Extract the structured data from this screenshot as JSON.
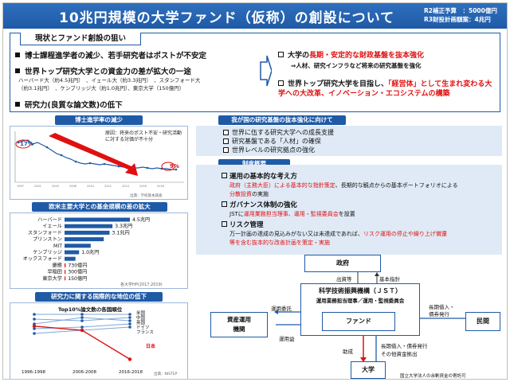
{
  "header": {
    "title": "10兆円規模の大学ファンド（仮称）の創設について",
    "budget_line1": "R2補正予算　：5000億円",
    "budget_line2": "R3財投計画額案：4兆円"
  },
  "status": {
    "label": "現状とファンド創設の狙い",
    "bullets": [
      "博士課程進学者の減少、若手研究者はポストが不安定",
      "世界トップ研究大学との資金力の差が拡大の一途",
      "研究力(良質な論文数)の低下"
    ],
    "sub_line1": "ハーバード大（約4.5兆円）　、イェール大（約3.3兆円）　、スタンフォード大",
    "sub_line2": "（約3.1兆円）　、ケンブリッジ大（約1.0兆円）、東京大学（150億円）",
    "aims": [
      {
        "pre": "大学の",
        "red": "長期・安定的な財政基盤を抜本強化",
        "post": ""
      },
      {
        "pre": "世界トップ研究大学を目指し、",
        "red": "「経営体」として生まれ変わる大学への大改革、イノベーション・エコシステムの構築",
        "post": ""
      }
    ],
    "aim1_sub": "⇒人材、研究インフラなど将来の研究基盤を強化"
  },
  "chart1": {
    "header": "博士進学率の減少",
    "note": "原因：将来のポスト不安・研究活動に対する対価が不十分",
    "start_label": "17%",
    "end_label": "9%",
    "source": "出典：学校基本調査"
  },
  "chart2": {
    "header": "欧米主要大学との基金規模の差の拡大",
    "source": "各大学HP(2017,2019)",
    "chart_data": {
      "type": "bar",
      "categories": [
        "ハーバード",
        "イェール",
        "スタンフォード",
        "プリンストン",
        "MIT",
        "ケンブリッジ",
        "オックスフォード",
        "慶應",
        "早稲田",
        "東京大学"
      ],
      "values": [
        4.5,
        3.3,
        3.1,
        2.7,
        1.8,
        1.0,
        0.75,
        0.073,
        0.03,
        0.015
      ],
      "value_labels": [
        "4.5兆円",
        "3.3兆円",
        "3.1兆円",
        "",
        "",
        "1.0兆円",
        "",
        "730億円",
        "300億円",
        "150億円"
      ]
    }
  },
  "chart3": {
    "header": "研究力に関する国際的な地位の低下",
    "subtitle": "Top10%論文数の各国順位",
    "countries": [
      "米国",
      "中国",
      "英国",
      "ドイツ",
      "フランス"
    ],
    "japan_label": "日本",
    "x_labels": [
      "1996-1998",
      "2006-2008",
      "2016-2018"
    ],
    "source": "出典：NISTEP",
    "chart_data": {
      "type": "line",
      "x": [
        "1996-1998",
        "2006-2008",
        "2016-2018"
      ],
      "series": [
        {
          "name": "日本",
          "values": [
            4,
            5,
            12
          ]
        }
      ]
    }
  },
  "right1": {
    "header": "我が国の研究基盤の抜本強化に向けて",
    "items": [
      "世界に伍する研究大学への成長支援",
      "研究基盤である「人材」の確保",
      "世界レベルの研究拠点の強化"
    ]
  },
  "right2": {
    "header": "制度概要",
    "h1": "運用の基本的な考え方",
    "h1_l1_red": "政府（主務大臣）による基本的な指針策定",
    "h1_l1_post": "、長期的な観点からの基本ポートフォリオによる",
    "h1_l2_red": "分散投資",
    "h1_l2_post": "の実施",
    "h2": "ガバナンス体制の強化",
    "h2_pre": "JSTに",
    "h2_red": "運用業務担当理事、運用・監視委員会",
    "h2_post": "を設置",
    "h3": "リスク管理",
    "h3_pre": "万一計画の達成の見込みがない又は未達成であれば、",
    "h3_red1": "リスク運用の停止や繰り上げ償還",
    "h3_red2": "等を含む抜本的な改善計画を策定・実施"
  },
  "diagram": {
    "gov": "政府",
    "invest": "出資等",
    "policy": "基本指針",
    "jst": "科学技術振興機構（ＪＳＴ）",
    "jst_sub": "運用業務担当理事／運用・監視委員会",
    "fund": "ファンド",
    "asset": "資産運用\n機関",
    "entrust": "運用委託",
    "profit": "運用益",
    "private": "民間",
    "long": "長期借入・\n債券発行",
    "support": "助成",
    "univ": "大学",
    "contrib": "長期借入・債券発行\nその他資金拠出",
    "note": "国立大学法人の余剰資金の寄託可"
  }
}
